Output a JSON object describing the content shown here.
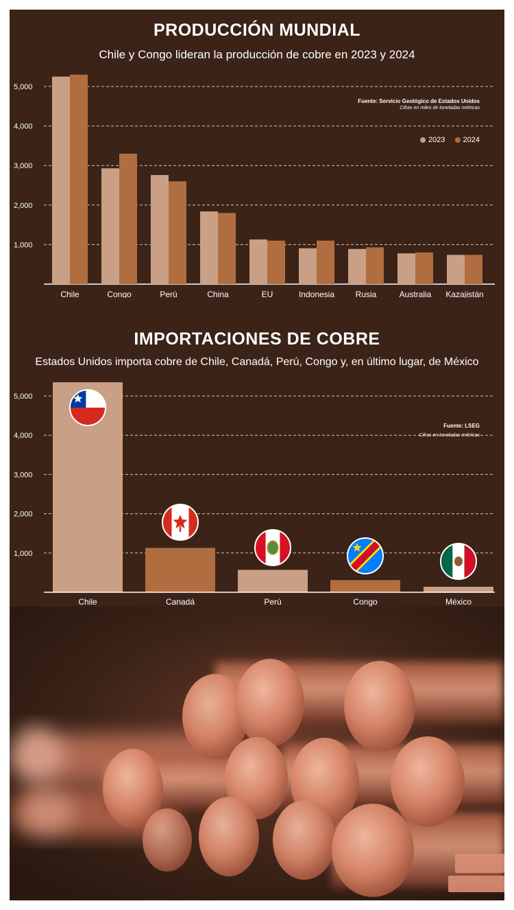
{
  "colors": {
    "background": "#3b2318",
    "series_2023": "#c9a085",
    "series_2024": "#b06e40",
    "grid": "#d9c6b8"
  },
  "chart_data": [
    {
      "type": "bar",
      "title": "PRODUCCIÓN MUNDIAL",
      "subtitle": "Chile y Congo lideran la producción de cobre en 2023 y 2024",
      "source": "Fuente: Servicio Geológico de Estados Unidos",
      "note": "Cifras en miles de toneladas métricas",
      "categories": [
        "Chile",
        "Congo",
        "Perú",
        "China",
        "EU",
        "Indonesia",
        "Rusia",
        "Australia",
        "Kazajistán"
      ],
      "series": [
        {
          "name": "2023",
          "values": [
            5250,
            2930,
            2760,
            1840,
            1130,
            907,
            890,
            778,
            740
          ]
        },
        {
          "name": "2024",
          "values": [
            5300,
            3300,
            2600,
            1800,
            1100,
            1100,
            930,
            800,
            740
          ]
        }
      ],
      "yticks": [
        "1,000",
        "2,000",
        "3,000",
        "4,000",
        "5,000"
      ],
      "ylim": [
        0,
        5500
      ],
      "grid": true,
      "legend": "top-right"
    },
    {
      "type": "bar",
      "title": "IMPORTACIONES DE COBRE",
      "subtitle": "Estados Unidos importa cobre de Chile, Canadá, Perú, Congo y, en último lugar, de México",
      "source": "Fuente: LSEG",
      "note": "Cifras en toneladas métricas",
      "categories": [
        "Chile",
        "Canadá",
        "Perú",
        "Congo",
        "México"
      ],
      "values": [
        5350,
        1130,
        570,
        310,
        140
      ],
      "flags": [
        "chile-flag-icon",
        "canada-flag-icon",
        "peru-flag-icon",
        "congo-flag-icon",
        "mexico-flag-icon"
      ],
      "yticks": [
        "1,000",
        "2,000",
        "3,000",
        "4,000",
        "5,000"
      ],
      "ylim": [
        0,
        5500
      ],
      "grid": true
    }
  ]
}
